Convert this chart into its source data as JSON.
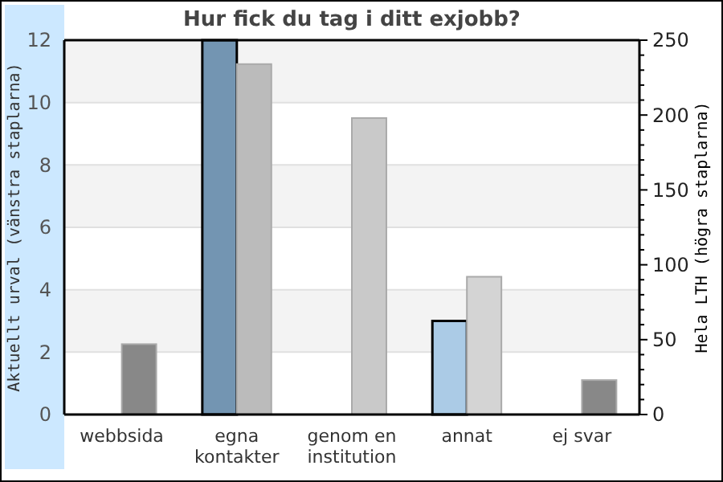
{
  "chart_data": {
    "type": "bar",
    "title": "Hur fick du tag i ditt exjobb?",
    "ylabel": "Aktuellt urval (vänstra staplarna)",
    "y2label": "Hela LTH (högra staplarna)",
    "categories": [
      "webbsida",
      "egna kontakter",
      "genom en institution",
      "annat",
      "ej svar"
    ],
    "series": [
      {
        "axis": "y",
        "colors": [
          "#7395b2",
          "#7395b2",
          "#7395b2",
          "#abcbe6",
          "#7395b2"
        ],
        "values": [
          0,
          12,
          0,
          3,
          0
        ]
      },
      {
        "axis": "y2",
        "colors": [
          "#888888",
          "#bbbbbb",
          "#c9c9c9",
          "#d4d4d4",
          "#888888"
        ],
        "values": [
          47,
          234,
          198,
          92,
          23
        ]
      }
    ],
    "ylim": [
      0,
      12
    ],
    "yticks": [
      0,
      2,
      4,
      6,
      8,
      10,
      12
    ],
    "y2lim": [
      0,
      250
    ],
    "y2ticks": [
      0,
      {
        "value": 10,
        "label": null
      },
      {
        "value": 20,
        "label": null
      },
      {
        "value": 30,
        "label": null
      },
      {
        "value": 40,
        "label": null
      },
      50,
      {
        "value": 60,
        "label": null
      },
      {
        "value": 70,
        "label": null
      },
      {
        "value": 80,
        "label": null
      },
      {
        "value": 90,
        "label": null
      },
      100,
      {
        "value": 110,
        "label": null
      },
      {
        "value": 120,
        "label": null
      },
      {
        "value": 130,
        "label": null
      },
      {
        "value": 140,
        "label": null
      },
      150,
      {
        "value": 160,
        "label": null
      },
      {
        "value": 170,
        "label": null
      },
      {
        "value": 180,
        "label": null
      },
      {
        "value": 190,
        "label": null
      },
      200,
      {
        "value": 210,
        "label": null
      },
      {
        "value": 220,
        "label": null
      },
      {
        "value": 230,
        "label": null
      },
      {
        "value": 240,
        "label": null
      },
      250
    ],
    "grid": "y"
  }
}
